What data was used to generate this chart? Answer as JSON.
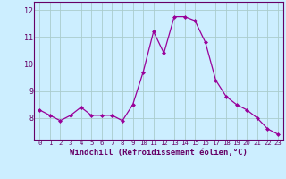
{
  "x": [
    0,
    1,
    2,
    3,
    4,
    5,
    6,
    7,
    8,
    9,
    10,
    11,
    12,
    13,
    14,
    15,
    16,
    17,
    18,
    19,
    20,
    21,
    22,
    23
  ],
  "y": [
    8.3,
    8.1,
    7.9,
    8.1,
    8.4,
    8.1,
    8.1,
    8.1,
    7.9,
    8.5,
    9.7,
    11.2,
    10.4,
    11.75,
    11.75,
    11.6,
    10.8,
    9.4,
    8.8,
    8.5,
    8.3,
    8.0,
    7.6,
    7.4
  ],
  "line_color": "#990099",
  "marker": "D",
  "marker_size": 2.0,
  "bg_color": "#cceeff",
  "grid_color": "#aacccc",
  "xlabel": "Windchill (Refroidissement éolien,°C)",
  "xtick_labels": [
    "0",
    "1",
    "2",
    "3",
    "4",
    "5",
    "6",
    "7",
    "8",
    "9",
    "10",
    "11",
    "12",
    "13",
    "14",
    "15",
    "16",
    "17",
    "18",
    "19",
    "20",
    "21",
    "22",
    "23"
  ],
  "ylim": [
    7.2,
    12.3
  ],
  "yticks": [
    8,
    9,
    10,
    11,
    12
  ],
  "font_color": "#660066",
  "xlabel_fontsize": 6.5,
  "xtick_fontsize": 5.2,
  "ytick_fontsize": 6.0
}
